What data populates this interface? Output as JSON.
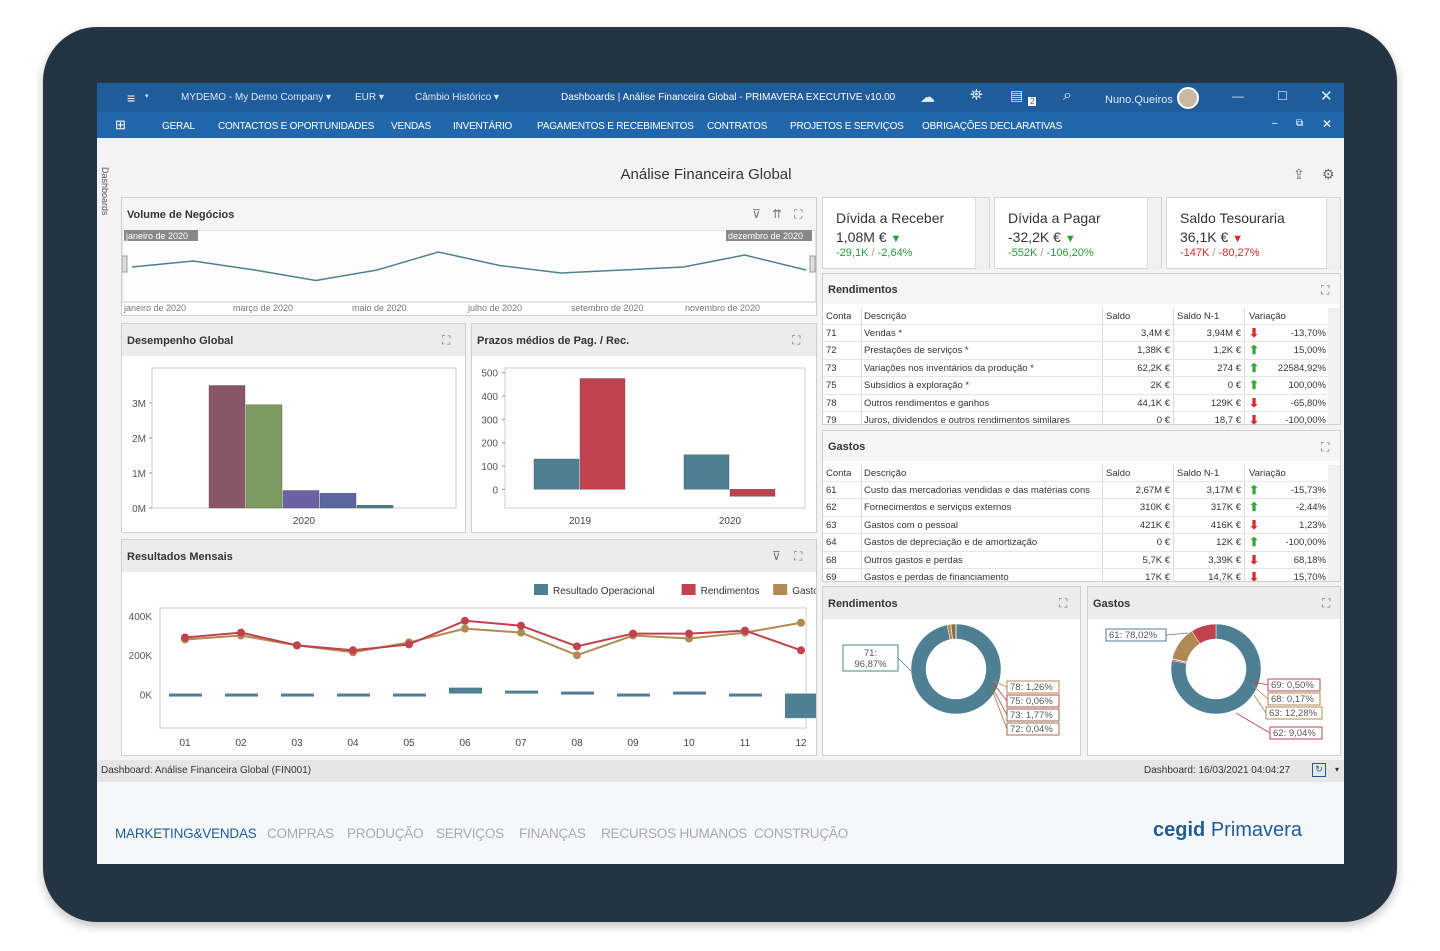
{
  "titlebar": {
    "company": "MYDEMO - My Demo Company",
    "currency": "EUR",
    "exchange": "Câmbio Histórico",
    "title": "Dashboards | Análise Financeira Global - PRIMAVERA EXECUTIVE v10.00",
    "user": "Nuno.Queiros",
    "badge": "2"
  },
  "menu": [
    "GERAL",
    "CONTACTOS E OPORTUNIDADES",
    "VENDAS",
    "INVENTÁRIO",
    "PAGAMENTOS E RECEBIMENTOS",
    "CONTRATOS",
    "PROJETOS E SERVIÇOS",
    "OBRIGAÇÕES DECLARATIVAS"
  ],
  "side_label": "Dashboards",
  "page_title": "Análise Financeira Global",
  "volume": {
    "title": "Volume de Negócios",
    "range_start": "janeiro de 2020",
    "range_end": "dezembro de 2020",
    "axis": [
      "janeiro de 2020",
      "março de 2020",
      "maio de 2020",
      "julho de 2020",
      "setembro de 2020",
      "novembro de 2020"
    ]
  },
  "kpis": [
    {
      "name": "Dívida a Receber",
      "value": "1,08M €",
      "delta_abs": "-29,1K",
      "sep": "/",
      "delta_pct": "-2,64%",
      "color": "#2a9a3a"
    },
    {
      "name": "Dívida a Pagar",
      "value": "-32,2K €",
      "delta_abs": "-552K",
      "sep": "/",
      "delta_pct": "-106,20%",
      "color": "#2a9a3a"
    },
    {
      "name": "Saldo Tesouraria",
      "value": "36,1K €",
      "delta_abs": "-147K",
      "sep": "/",
      "delta_pct": "-80,27%",
      "color": "#d42a2a"
    }
  ],
  "headers": {
    "conta": "Conta",
    "descricao": "Descrição",
    "saldo": "Saldo",
    "saldo_n1": "Saldo N-1",
    "variacao": "Variação"
  },
  "rendimentos_table": {
    "title": "Rendimentos",
    "rows": [
      {
        "conta": "71",
        "desc": "Vendas *",
        "saldo": "3,4M €",
        "n1": "3,94M €",
        "var": "-13,70%",
        "dir": "down"
      },
      {
        "conta": "72",
        "desc": "Prestações de serviços *",
        "saldo": "1,38K €",
        "n1": "1,2K €",
        "var": "15,00%",
        "dir": "up"
      },
      {
        "conta": "73",
        "desc": "Variações nos inventários da produção *",
        "saldo": "62,2K €",
        "n1": "274 €",
        "var": "22584,92%",
        "dir": "up"
      },
      {
        "conta": "75",
        "desc": "Subsídios à exploração *",
        "saldo": "2K €",
        "n1": "0 €",
        "var": "100,00%",
        "dir": "up"
      },
      {
        "conta": "78",
        "desc": "Outros rendimentos e ganhos",
        "saldo": "44,1K €",
        "n1": "129K €",
        "var": "-65,80%",
        "dir": "down"
      },
      {
        "conta": "79",
        "desc": "Juros, dividendos e outros rendimentos similares",
        "saldo": "0 €",
        "n1": "18,7 €",
        "var": "-100,00%",
        "dir": "down"
      }
    ]
  },
  "gastos_table": {
    "title": "Gastos",
    "rows": [
      {
        "conta": "61",
        "desc": "Custo das mercadorias vendidas e das matérias cons",
        "saldo": "2,67M €",
        "n1": "3,17M €",
        "var": "-15,73%",
        "dir": "up"
      },
      {
        "conta": "62",
        "desc": "Fornecimentos e serviços externos",
        "saldo": "310K €",
        "n1": "317K €",
        "var": "-2,44%",
        "dir": "up"
      },
      {
        "conta": "63",
        "desc": "Gastos com o pessoal",
        "saldo": "421K €",
        "n1": "416K €",
        "var": "1,23%",
        "dir": "down"
      },
      {
        "conta": "64",
        "desc": "Gastos de depreciação e de amortização",
        "saldo": "0 €",
        "n1": "12K €",
        "var": "-100,00%",
        "dir": "up"
      },
      {
        "conta": "68",
        "desc": "Outros gastos e perdas",
        "saldo": "5,7K €",
        "n1": "3,39K €",
        "var": "68,18%",
        "dir": "down"
      },
      {
        "conta": "69",
        "desc": "Gastos e perdas de financiamento",
        "saldo": "17K €",
        "n1": "14,7K €",
        "var": "15,70%",
        "dir": "down"
      }
    ]
  },
  "desempenho": {
    "title": "Desempenho Global"
  },
  "prazos": {
    "title": "Prazos médios de Pag. / Rec."
  },
  "resultados": {
    "title": "Resultados Mensais"
  },
  "rend_pie": {
    "title": "Rendimentos"
  },
  "gastos_pie": {
    "title": "Gastos"
  },
  "statusbar": {
    "left": "Dashboard: Análise Financeira Global (FIN001)",
    "right": "Dashboard: 16/03/2021 04:04:27"
  },
  "modules": [
    "MARKETING&VENDAS",
    "COMPRAS",
    "PRODUÇÃO",
    "SERVIÇOS",
    "FINANÇAS",
    "RECURSOS HUMANOS",
    "CONSTRUÇÃO"
  ],
  "brand": {
    "a": "cegid",
    "b": "Primavera"
  },
  "colors": {
    "teal": "#4e7f92",
    "red": "#c0424f",
    "olive": "#7e9a5f",
    "mauve": "#8a5567",
    "purple": "#6a61a4",
    "tan": "#b08a52",
    "brand_blue": "#1f5c9c"
  },
  "chart_data": [
    {
      "type": "line",
      "title": "Volume de Negócios",
      "categories": [
        "01",
        "02",
        "03",
        "04",
        "05",
        "06",
        "07",
        "08",
        "09",
        "10",
        "11",
        "12"
      ],
      "values": [
        44,
        52,
        40,
        26,
        40,
        64,
        46,
        36,
        40,
        44,
        60,
        40
      ]
    },
    {
      "type": "bar",
      "title": "Desempenho Global",
      "categories": [
        "2020"
      ],
      "series": [
        {
          "name": "",
          "values": [
            3.5
          ],
          "color": "#8a5567"
        },
        {
          "name": "",
          "values": [
            2.95
          ],
          "color": "#7e9a5f"
        },
        {
          "name": "",
          "values": [
            0.5
          ],
          "color": "#6a61a4"
        },
        {
          "name": "",
          "values": [
            0.42
          ],
          "color": "#5b66a0"
        },
        {
          "name": "",
          "values": [
            0.08
          ],
          "color": "#4e7f92"
        }
      ],
      "yticks": [
        "0M",
        "1M",
        "2M",
        "3M"
      ],
      "ylim": [
        0,
        4
      ]
    },
    {
      "type": "bar",
      "title": "Prazos médios de Pag. / Rec.",
      "categories": [
        "2019",
        "2020"
      ],
      "series": [
        {
          "name": "",
          "values": [
            130,
            148
          ],
          "color": "#4e7f92"
        },
        {
          "name": "",
          "values": [
            475,
            -30
          ],
          "color": "#c0424f"
        }
      ],
      "yticks": [
        "0",
        "100",
        "200",
        "300",
        "400",
        "500"
      ],
      "ylim": [
        -80,
        520
      ]
    },
    {
      "type": "line",
      "title": "Resultados Mensais",
      "categories": [
        "01",
        "02",
        "03",
        "04",
        "05",
        "06",
        "07",
        "08",
        "09",
        "10",
        "11",
        "12"
      ],
      "series": [
        {
          "name": "Resultado Operacional",
          "type": "bar",
          "values": [
            0,
            0,
            0,
            0,
            -10000,
            30000,
            15000,
            10000,
            0,
            10000,
            0,
            -125000
          ],
          "color": "#4e7f92"
        },
        {
          "name": "Rendimentos",
          "values": [
            290000,
            315000,
            250000,
            225000,
            255000,
            375000,
            350000,
            245000,
            310000,
            310000,
            325000,
            225000
          ],
          "color": "#c0424f"
        },
        {
          "name": "Gastos",
          "values": [
            280000,
            300000,
            250000,
            215000,
            265000,
            335000,
            315000,
            200000,
            300000,
            285000,
            315000,
            365000
          ],
          "color": "#b08a52"
        }
      ],
      "yticks": [
        "0K",
        "200K",
        "400K"
      ],
      "ylim": [
        -170000,
        440000
      ]
    },
    {
      "type": "pie",
      "title": "Rendimentos",
      "labels": [
        "71: 96,87%",
        "78: 1,26%",
        "75: 0,06%",
        "73: 1,77%",
        "72: 0,04%"
      ],
      "values": [
        96.87,
        1.26,
        0.06,
        1.77,
        0.04
      ]
    },
    {
      "type": "pie",
      "title": "Gastos",
      "labels": [
        "61: 78,02%",
        "69: 0,50%",
        "68: 0,17%",
        "63: 12,28%",
        "62: 9,04%"
      ],
      "values": [
        78.02,
        0.5,
        0.17,
        12.28,
        9.04
      ]
    }
  ]
}
